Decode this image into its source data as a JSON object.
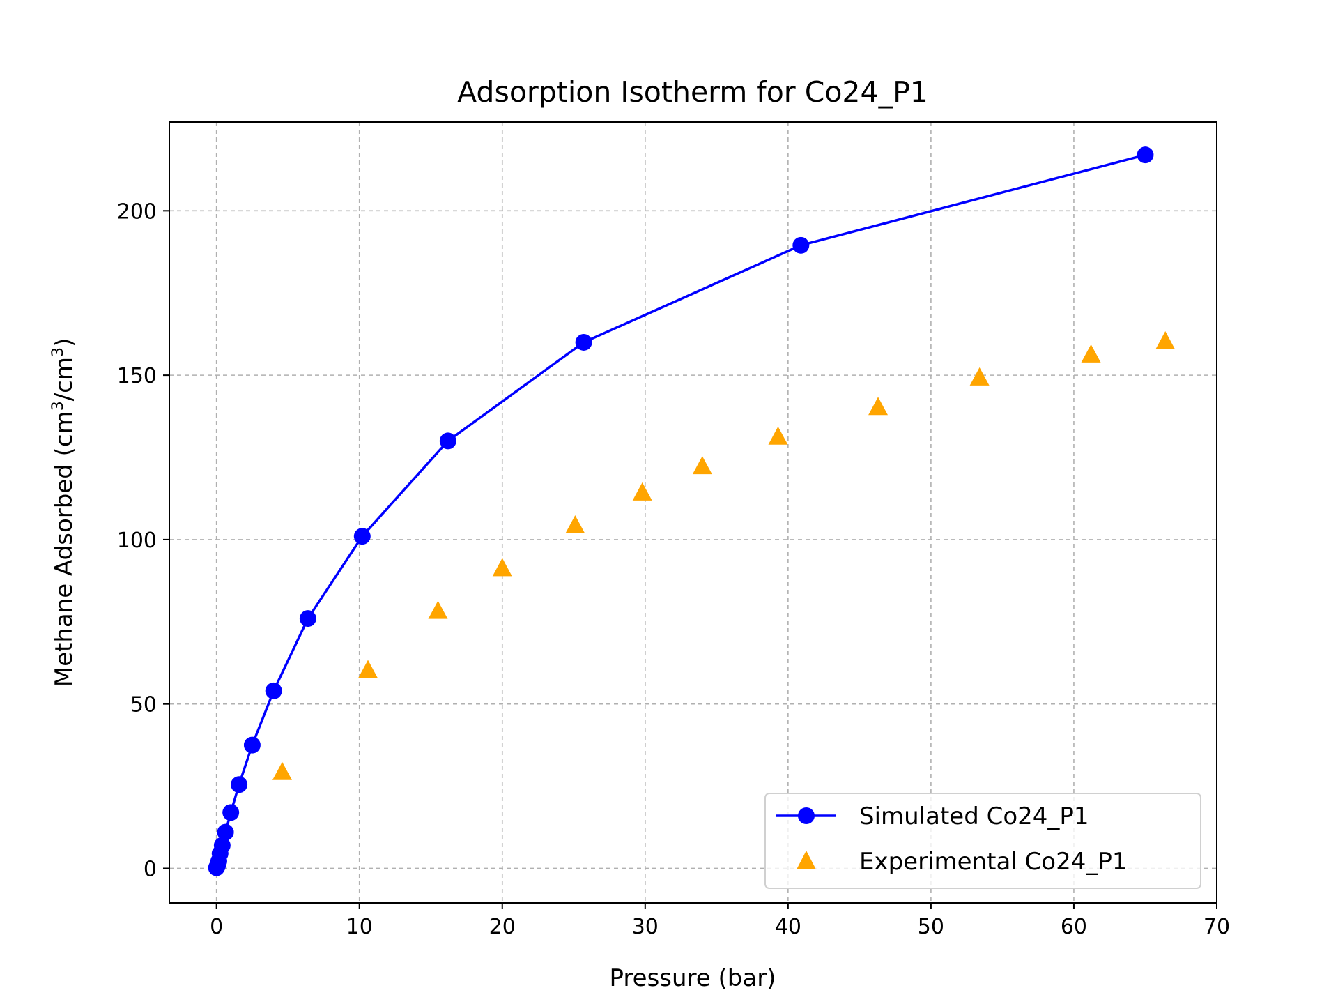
{
  "chart_data": {
    "type": "line",
    "title": "Adsorption Isotherm for Co24_P1",
    "xlabel": "Pressure (bar)",
    "ylabel_main": "Methane Adsorbed (cm",
    "ylabel_mid": "/cm",
    "ylabel_end": ")",
    "ylabel_sup": "3",
    "xlim": [
      -3.3,
      70
    ],
    "ylim": [
      -10.5,
      227
    ],
    "xticks": [
      0,
      10,
      20,
      30,
      40,
      50,
      60,
      70
    ],
    "yticks": [
      0,
      50,
      100,
      150,
      200
    ],
    "grid": true,
    "legend_position": "lower-right",
    "series": [
      {
        "name": "Simulated Co24_P1",
        "style": "line-circle",
        "color": "#0000ff",
        "x": [
          0.0,
          0.05,
          0.1,
          0.16,
          0.25,
          0.4,
          0.63,
          1.0,
          1.58,
          2.5,
          4.0,
          6.4,
          10.2,
          16.2,
          25.7,
          40.9,
          65.0
        ],
        "y": [
          0.2,
          0.6,
          1.2,
          2.2,
          4.5,
          7.0,
          11.0,
          17.0,
          25.5,
          37.5,
          54.0,
          76.0,
          101.0,
          130.0,
          160.0,
          189.5,
          217.0
        ]
      },
      {
        "name": "Experimental Co24_P1",
        "style": "triangle",
        "color": "#ffa500",
        "x": [
          4.6,
          10.6,
          15.5,
          20.0,
          25.1,
          29.8,
          34.0,
          39.3,
          46.3,
          53.4,
          61.2,
          66.4
        ],
        "y": [
          29.0,
          60.0,
          78.0,
          91.0,
          104.0,
          114.0,
          122.0,
          131.0,
          140.0,
          149.0,
          156.0,
          160.0
        ]
      }
    ]
  }
}
